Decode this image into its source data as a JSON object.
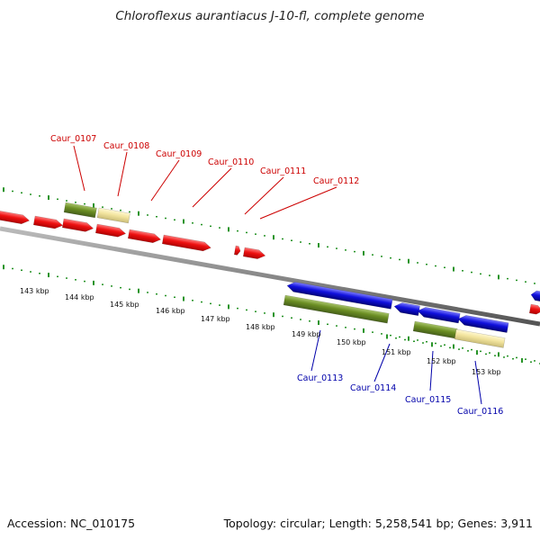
{
  "title": "Chloroflexus aurantiacus J-10-fl, complete genome",
  "footer": {
    "accession": "Accession: NC_010175",
    "summary": "Topology: circular; Length: 5,258,541 bp; Genes: 3,911"
  },
  "colors": {
    "forward_strand": "#ee1111",
    "reverse_strand": "#1010dd",
    "olive_feature": "#6b8e23",
    "tan_feature": "#f2e49e",
    "backbone": "#888888",
    "ticks": "#118811",
    "forward_label": "#cc0000",
    "reverse_label": "#0000aa"
  },
  "scale_labels": [
    "143 kbp",
    "144 kbp",
    "145 kbp",
    "146 kbp",
    "147 kbp",
    "148 kbp",
    "149 kbp",
    "150 kbp",
    "151 kbp",
    "152 kbp",
    "153 kbp"
  ],
  "forward_labels": [
    "Caur_0107",
    "Caur_0108",
    "Caur_0109",
    "Caur_0110",
    "Caur_0111",
    "Caur_0112"
  ],
  "reverse_labels": [
    "Caur_0113",
    "Caur_0114",
    "Caur_0115",
    "Caur_0116"
  ]
}
